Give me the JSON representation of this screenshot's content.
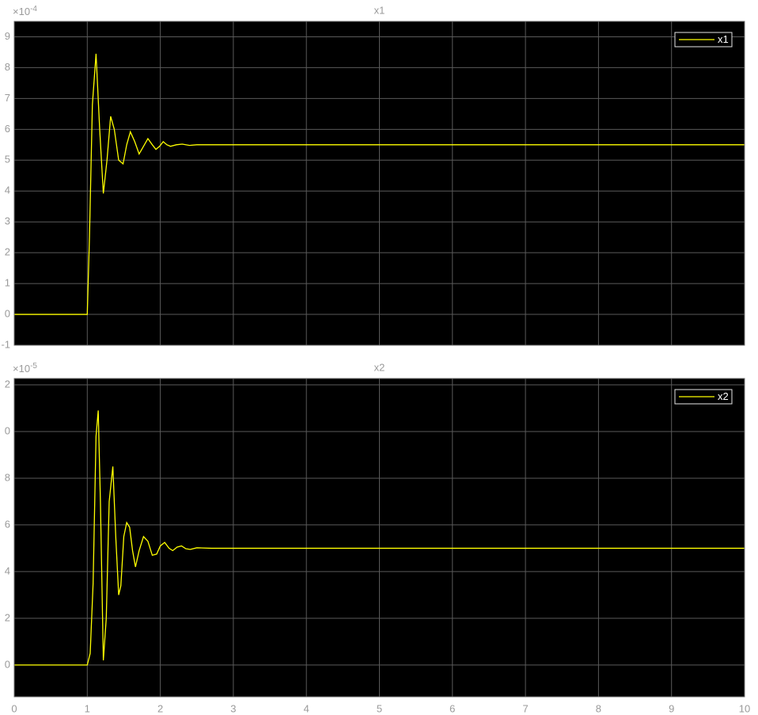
{
  "chart_data": [
    {
      "type": "line",
      "title": "x1",
      "y_multiplier": "×10",
      "y_exponent": "-4",
      "x": [
        0,
        1,
        1.03,
        1.07,
        1.12,
        1.17,
        1.22,
        1.27,
        1.32,
        1.37,
        1.43,
        1.49,
        1.54,
        1.59,
        1.65,
        1.71,
        1.77,
        1.83,
        1.89,
        1.94,
        1.99,
        2.04,
        2.09,
        2.14,
        2.22,
        2.3,
        2.4,
        2.5,
        2.7,
        3,
        10
      ],
      "series": [
        {
          "name": "x1",
          "color": "#ffff00",
          "values": [
            0,
            0,
            2.5,
            6.8,
            8.45,
            6.0,
            3.92,
            5.0,
            6.42,
            6.0,
            5.0,
            4.88,
            5.5,
            5.92,
            5.6,
            5.2,
            5.45,
            5.7,
            5.5,
            5.35,
            5.45,
            5.6,
            5.5,
            5.45,
            5.5,
            5.52,
            5.48,
            5.5,
            5.5,
            5.5,
            5.5
          ]
        }
      ],
      "xlim": [
        0,
        10
      ],
      "xticks": [
        0,
        1,
        2,
        3,
        4,
        5,
        6,
        7,
        8,
        9,
        10
      ],
      "show_xtick_labels": false,
      "ylim": [
        -1,
        9.5
      ],
      "yticks": [
        -1,
        0,
        1,
        2,
        3,
        4,
        5,
        6,
        7,
        8,
        9
      ],
      "grid": true,
      "legend": "upper right",
      "background": "#000000"
    },
    {
      "type": "line",
      "title": "x2",
      "y_multiplier": "×10",
      "y_exponent": "-5",
      "x": [
        0,
        1,
        1.04,
        1.08,
        1.12,
        1.15,
        1.18,
        1.22,
        1.26,
        1.3,
        1.35,
        1.39,
        1.43,
        1.46,
        1.5,
        1.54,
        1.58,
        1.62,
        1.66,
        1.71,
        1.77,
        1.83,
        1.89,
        1.95,
        2.0,
        2.06,
        2.12,
        2.17,
        2.23,
        2.29,
        2.35,
        2.41,
        2.5,
        2.7,
        3,
        10
      ],
      "series": [
        {
          "name": "x2",
          "color": "#ffff00",
          "values": [
            0,
            0,
            0.5,
            3.5,
            9.8,
            10.9,
            7.0,
            0.2,
            2.0,
            7.0,
            8.5,
            5.5,
            3.0,
            3.4,
            5.5,
            6.1,
            5.9,
            4.9,
            4.2,
            4.9,
            5.5,
            5.3,
            4.7,
            4.75,
            5.1,
            5.25,
            5.0,
            4.9,
            5.05,
            5.1,
            4.98,
            4.95,
            5.02,
            5.0,
            5.0,
            5.0
          ]
        }
      ],
      "xlim": [
        0,
        10
      ],
      "xticks": [
        0,
        1,
        2,
        3,
        4,
        5,
        6,
        7,
        8,
        9,
        10
      ],
      "show_xtick_labels": true,
      "ylim": [
        -1.36,
        12.27
      ],
      "yticks": [
        0,
        2,
        4,
        6,
        8,
        {
          "value": 10,
          "label": "0"
        },
        {
          "value": 12,
          "label": "2"
        }
      ],
      "grid": true,
      "legend": "upper right",
      "background": "#000000"
    }
  ]
}
